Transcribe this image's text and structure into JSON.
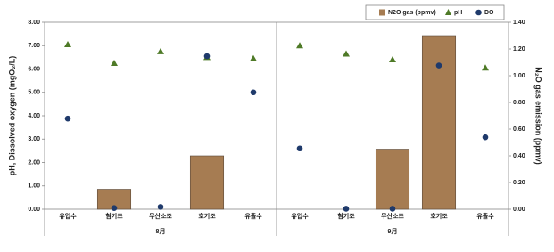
{
  "chart_data": {
    "type": "bar",
    "categories": [
      "유입수",
      "혐기조",
      "무산소조",
      "호기조",
      "유출수",
      "유입수",
      "혐기조",
      "무산소조",
      "호기조",
      "유출수"
    ],
    "groups": [
      "8月",
      "9月"
    ],
    "y_label": "pH, Dissolved oxygen (mgO₂/L)",
    "y2_label": "N₂O gas emission (ppmv)",
    "ylim": [
      0,
      8
    ],
    "yticks": [
      {
        "value": 0,
        "label": "0.00"
      },
      {
        "value": 1,
        "label": "1.00"
      },
      {
        "value": 2,
        "label": "2.00"
      },
      {
        "value": 3,
        "label": "3.00"
      },
      {
        "value": 4,
        "label": "4.00"
      },
      {
        "value": 5,
        "label": "5.00"
      },
      {
        "value": 6,
        "label": "6.00"
      },
      {
        "value": 7,
        "label": "7.00"
      },
      {
        "value": 8,
        "label": "8.00"
      }
    ],
    "y2lim": [
      0,
      1.4
    ],
    "y2ticks": [
      {
        "value": 0,
        "label": "0.00"
      },
      {
        "value": 0.2,
        "label": "0.20"
      },
      {
        "value": 0.4,
        "label": "0.40"
      },
      {
        "value": 0.6,
        "label": "0.60"
      },
      {
        "value": 0.8,
        "label": "0.80"
      },
      {
        "value": 1,
        "label": "1.00"
      },
      {
        "value": 1.2,
        "label": "1.20"
      },
      {
        "value": 1.4,
        "label": "1.40"
      }
    ],
    "series": [
      {
        "name": "N2O gas (ppmv)",
        "type": "bar",
        "axis": "y2",
        "color": "#a67c52",
        "values": [
          null,
          0.15,
          null,
          0.4,
          null,
          null,
          null,
          0.45,
          1.3,
          null
        ]
      },
      {
        "name": "pH",
        "type": "triangle",
        "color": "#4e7a27",
        "values": [
          7.05,
          6.25,
          6.75,
          6.5,
          6.45,
          7.0,
          6.65,
          6.4,
          null,
          6.05
        ]
      },
      {
        "name": "DO",
        "type": "circle",
        "color": "#1f3a6b",
        "values": [
          3.88,
          0.05,
          0.1,
          6.55,
          5.0,
          2.6,
          0.02,
          0.02,
          6.15,
          3.08
        ]
      }
    ]
  }
}
